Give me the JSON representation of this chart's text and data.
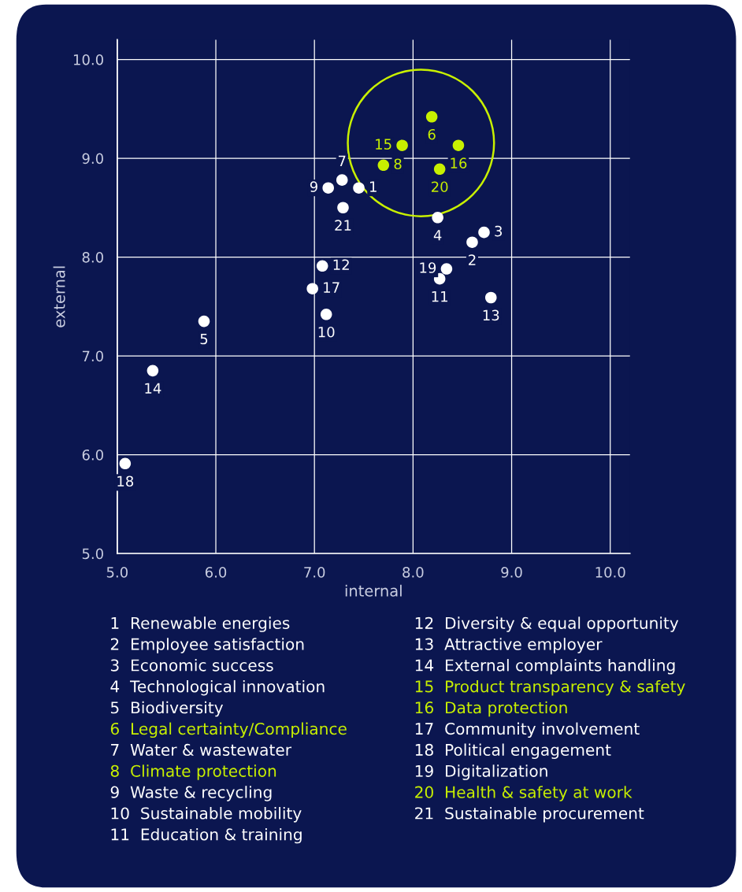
{
  "chart_data": {
    "type": "scatter",
    "xlabel": "internal",
    "ylabel": "external",
    "xlim": [
      5,
      10.2
    ],
    "ylim": [
      5,
      10.2
    ],
    "xticks": [
      {
        "value": 5,
        "label": "5.0"
      },
      {
        "value": 6,
        "label": "6.0"
      },
      {
        "value": 7,
        "label": "7.0"
      },
      {
        "value": 8,
        "label": "8.0"
      },
      {
        "value": 9,
        "label": "9.0"
      },
      {
        "value": 10,
        "label": "10.0"
      }
    ],
    "yticks": [
      {
        "value": 5,
        "label": "5.0"
      },
      {
        "value": 6,
        "label": "6.0"
      },
      {
        "value": 7,
        "label": "7.0"
      },
      {
        "value": 8,
        "label": "8.0"
      },
      {
        "value": 9,
        "label": "9.0"
      },
      {
        "value": 10,
        "label": "10.0"
      }
    ],
    "grid": true,
    "marker": "circle",
    "series": [
      {
        "color": "#ffffff",
        "x": [
          7.45,
          8.6,
          8.72,
          8.25,
          5.88,
          7.28,
          7.14,
          7.12,
          8.27,
          7.08,
          8.79,
          5.36,
          6.98,
          5.08,
          8.34,
          7.29
        ],
        "values": [
          8.7,
          8.15,
          8.25,
          8.4,
          7.35,
          8.78,
          8.7,
          7.42,
          7.78,
          7.91,
          7.59,
          6.85,
          7.68,
          5.91,
          7.88,
          8.5
        ]
      },
      {
        "color": "#c8f000",
        "x": [
          8.19,
          7.7,
          7.89,
          8.46,
          8.27
        ],
        "values": [
          9.42,
          8.93,
          9.13,
          9.13,
          8.89
        ]
      }
    ],
    "annotations": [
      {
        "text": "1",
        "x": 7.45,
        "y": 8.7
      },
      {
        "text": "2",
        "x": 8.6,
        "y": 8.15
      },
      {
        "text": "3",
        "x": 8.72,
        "y": 8.25
      },
      {
        "text": "4",
        "x": 8.25,
        "y": 8.4
      },
      {
        "text": "5",
        "x": 5.88,
        "y": 7.35
      },
      {
        "text": "6",
        "x": 8.19,
        "y": 9.42
      },
      {
        "text": "7",
        "x": 7.28,
        "y": 8.78
      },
      {
        "text": "8",
        "x": 7.7,
        "y": 8.93
      },
      {
        "text": "9",
        "x": 7.14,
        "y": 8.7
      },
      {
        "text": "10",
        "x": 7.12,
        "y": 7.42
      },
      {
        "text": "11",
        "x": 8.27,
        "y": 7.78
      },
      {
        "text": "12",
        "x": 7.08,
        "y": 7.91
      },
      {
        "text": "13",
        "x": 8.79,
        "y": 7.59
      },
      {
        "text": "14",
        "x": 5.36,
        "y": 6.85
      },
      {
        "text": "15",
        "x": 7.89,
        "y": 9.13
      },
      {
        "text": "16",
        "x": 8.46,
        "y": 9.13
      },
      {
        "text": "17",
        "x": 6.98,
        "y": 7.68
      },
      {
        "text": "18",
        "x": 5.08,
        "y": 5.91
      },
      {
        "text": "19",
        "x": 8.34,
        "y": 7.88
      },
      {
        "text": "20",
        "x": 8.27,
        "y": 8.89
      },
      {
        "text": "21",
        "x": 7.29,
        "y": 8.5
      },
      "1  Renewable energies",
      "2  Employee satisfaction",
      "3  Economic success",
      "4  Technological innovation",
      "5  Biodiversity",
      "6  Legal certainty/Compliance",
      "7  Water & wastewater",
      "8  Climate protection",
      "9  Waste & recycling",
      "10  Sustainable mobility",
      "11  Education & training",
      "12  Diversity & equal opportunity",
      "13  Attractive employer",
      "14  External complaints handling",
      "15  Product transparency & safety",
      "16  Data protection",
      "17  Community involvement",
      "18  Political engagement",
      "19  Digitalization",
      "20  Health & safety at work",
      "21  Sustainable procurement"
    ]
  }
}
